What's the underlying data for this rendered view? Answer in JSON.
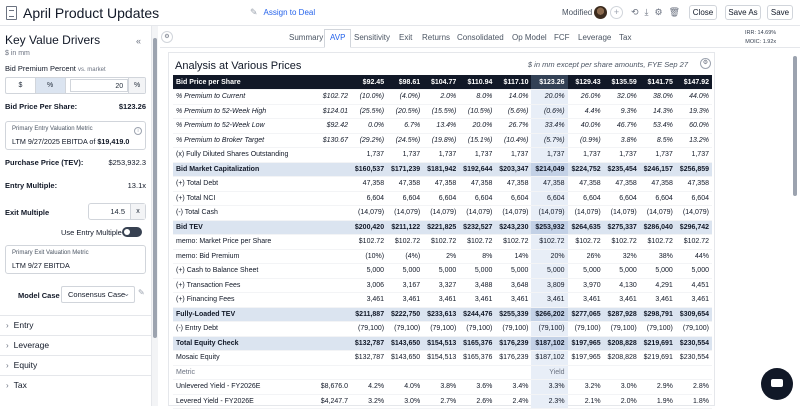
{
  "header": {
    "title": "April Product Updates",
    "assign_label": "Assign to Deal",
    "modified_label": "Modified",
    "close_label": "Close",
    "save_as_label": "Save As",
    "save_label": "Save"
  },
  "left": {
    "title": "Key Value Drivers",
    "unit": "$ in mm",
    "bid_premium_label": "Bid Premium Percent",
    "bid_premium_note": "vs. market",
    "seg_dollar": "$",
    "seg_pct": "%",
    "premium_value": "20",
    "premium_unit": "%",
    "bid_price_label": "Bid Price Per Share:",
    "bid_price_value": "$123.26",
    "entry_metric_title": "Primary Entry Valuation Metric",
    "entry_metric_value": "LTM 9/27/2025 EBITDA",
    "entry_metric_of": "of",
    "entry_metric_amount": "$19,419.0",
    "purchase_price_label": "Purchase Price (TEV):",
    "purchase_price_value": "$253,932.3",
    "entry_multiple_label": "Entry Multiple:",
    "entry_multiple_value": "13.1x",
    "exit_multiple_label": "Exit Multiple",
    "exit_multiple_value": "14.5",
    "exit_multiple_unit": "x",
    "use_entry_label": "Use Entry Multiple",
    "exit_metric_title": "Primary Exit Valuation Metric",
    "exit_metric_value": "LTM 9/27 EBITDA",
    "model_case_label": "Model Case",
    "model_case_value": "Consensus Case",
    "sections": [
      "Entry",
      "Leverage",
      "Equity",
      "Tax"
    ]
  },
  "tabs": [
    "Summary",
    "AVP",
    "Sensitivity",
    "Exit",
    "Returns",
    "Consolidated",
    "Op Model",
    "FCF",
    "Leverage",
    "Tax"
  ],
  "active_tab": "AVP",
  "irr": {
    "irr_label": "IRR:",
    "irr_value": "14.69%",
    "moic_label": "MOIC:",
    "moic_value": "1.92x"
  },
  "analysis": {
    "title": "Analysis at Various Prices",
    "note": "$ in mm except per share amounts, FYE Sep 27"
  },
  "table": {
    "rows": [
      {
        "type": "hd",
        "label": "Bid Price per Share",
        "base": "",
        "cells": [
          "$92.45",
          "$98.61",
          "$104.77",
          "$110.94",
          "$117.10",
          "$123.26",
          "$129.43",
          "$135.59",
          "$141.75",
          "$147.92"
        ]
      },
      {
        "type": "it",
        "label": "% Premium to Current",
        "base": "$102.72",
        "cells": [
          "(10.0%)",
          "(4.0%)",
          "2.0%",
          "8.0%",
          "14.0%",
          "20.0%",
          "26.0%",
          "32.0%",
          "38.0%",
          "44.0%"
        ]
      },
      {
        "type": "it",
        "label": "% Premium to 52-Week High",
        "base": "$124.01",
        "cells": [
          "(25.5%)",
          "(20.5%)",
          "(15.5%)",
          "(10.5%)",
          "(5.6%)",
          "(0.6%)",
          "4.4%",
          "9.3%",
          "14.3%",
          "19.3%"
        ]
      },
      {
        "type": "it",
        "label": "% Premium to 52-Week Low",
        "base": "$92.42",
        "cells": [
          "0.0%",
          "6.7%",
          "13.4%",
          "20.0%",
          "26.7%",
          "33.4%",
          "40.0%",
          "46.7%",
          "53.4%",
          "60.0%"
        ]
      },
      {
        "type": "it",
        "label": "% Premium to Broker Target",
        "base": "$130.67",
        "cells": [
          "(29.2%)",
          "(24.5%)",
          "(19.8%)",
          "(15.1%)",
          "(10.4%)",
          "(5.7%)",
          "(0.9%)",
          "3.8%",
          "8.5%",
          "13.2%"
        ]
      },
      {
        "type": "n",
        "label": "(x) Fully Diluted Shares Outstanding",
        "base": "",
        "cells": [
          "1,737",
          "1,737",
          "1,737",
          "1,737",
          "1,737",
          "1,737",
          "1,737",
          "1,737",
          "1,737",
          "1,737"
        ]
      },
      {
        "type": "sec",
        "label": "Bid Market Capitalization",
        "base": "",
        "cells": [
          "$160,537",
          "$171,239",
          "$181,942",
          "$192,644",
          "$203,347",
          "$214,049",
          "$224,752",
          "$235,454",
          "$246,157",
          "$256,859"
        ]
      },
      {
        "type": "n",
        "label": "(+) Total Debt",
        "base": "",
        "cells": [
          "47,358",
          "47,358",
          "47,358",
          "47,358",
          "47,358",
          "47,358",
          "47,358",
          "47,358",
          "47,358",
          "47,358"
        ]
      },
      {
        "type": "n",
        "label": "(+) Total NCI",
        "base": "",
        "cells": [
          "6,604",
          "6,604",
          "6,604",
          "6,604",
          "6,604",
          "6,604",
          "6,604",
          "6,604",
          "6,604",
          "6,604"
        ]
      },
      {
        "type": "n",
        "label": "(-) Total Cash",
        "base": "",
        "cells": [
          "(14,079)",
          "(14,079)",
          "(14,079)",
          "(14,079)",
          "(14,079)",
          "(14,079)",
          "(14,079)",
          "(14,079)",
          "(14,079)",
          "(14,079)"
        ]
      },
      {
        "type": "sec",
        "label": "Bid TEV",
        "base": "",
        "cells": [
          "$200,420",
          "$211,122",
          "$221,825",
          "$232,527",
          "$243,230",
          "$253,932",
          "$264,635",
          "$275,337",
          "$286,040",
          "$296,742"
        ]
      },
      {
        "type": "n",
        "label": "memo: Market Price per Share",
        "base": "",
        "cells": [
          "$102.72",
          "$102.72",
          "$102.72",
          "$102.72",
          "$102.72",
          "$102.72",
          "$102.72",
          "$102.72",
          "$102.72",
          "$102.72"
        ]
      },
      {
        "type": "n",
        "label": "memo: Bid Premium",
        "base": "",
        "cells": [
          "(10%)",
          "(4%)",
          "2%",
          "8%",
          "14%",
          "20%",
          "26%",
          "32%",
          "38%",
          "44%"
        ]
      },
      {
        "type": "n",
        "label": "(+) Cash to Balance Sheet",
        "base": "",
        "cells": [
          "5,000",
          "5,000",
          "5,000",
          "5,000",
          "5,000",
          "5,000",
          "5,000",
          "5,000",
          "5,000",
          "5,000"
        ]
      },
      {
        "type": "n",
        "label": "(+) Transaction Fees",
        "base": "",
        "cells": [
          "3,006",
          "3,167",
          "3,327",
          "3,488",
          "3,648",
          "3,809",
          "3,970",
          "4,130",
          "4,291",
          "4,451"
        ]
      },
      {
        "type": "n",
        "label": "(+) Financing Fees",
        "base": "",
        "cells": [
          "3,461",
          "3,461",
          "3,461",
          "3,461",
          "3,461",
          "3,461",
          "3,461",
          "3,461",
          "3,461",
          "3,461"
        ]
      },
      {
        "type": "sec",
        "label": "Fully-Loaded TEV",
        "base": "",
        "cells": [
          "$211,887",
          "$222,750",
          "$233,613",
          "$244,476",
          "$255,339",
          "$266,202",
          "$277,065",
          "$287,928",
          "$298,791",
          "$309,654"
        ]
      },
      {
        "type": "n",
        "label": "(-) Entry Debt",
        "base": "",
        "cells": [
          "(79,100)",
          "(79,100)",
          "(79,100)",
          "(79,100)",
          "(79,100)",
          "(79,100)",
          "(79,100)",
          "(79,100)",
          "(79,100)",
          "(79,100)"
        ]
      },
      {
        "type": "sec",
        "label": "Total Equity Check",
        "base": "",
        "cells": [
          "$132,787",
          "$143,650",
          "$154,513",
          "$165,376",
          "$176,239",
          "$187,102",
          "$197,965",
          "$208,828",
          "$219,691",
          "$230,554"
        ]
      },
      {
        "type": "n",
        "label": "Mosaic Equity",
        "base": "",
        "cells": [
          "$132,787",
          "$143,650",
          "$154,513",
          "$165,376",
          "$176,239",
          "$187,102",
          "$197,965",
          "$208,828",
          "$219,691",
          "$230,554"
        ]
      },
      {
        "type": "grey",
        "label": "Metric",
        "base": "",
        "cells": [
          "",
          "",
          "",
          "",
          "",
          "Yield",
          "",
          "",
          "",
          ""
        ]
      },
      {
        "type": "n",
        "label": "Unlevered Yield - FY2026E",
        "base": "$8,676.0",
        "cells": [
          "4.2%",
          "4.0%",
          "3.8%",
          "3.6%",
          "3.4%",
          "3.3%",
          "3.2%",
          "3.0%",
          "2.9%",
          "2.8%"
        ]
      },
      {
        "type": "n",
        "label": "Levered Yield - FY2026E",
        "base": "$4,247.7",
        "cells": [
          "3.2%",
          "3.0%",
          "2.7%",
          "2.6%",
          "2.4%",
          "2.3%",
          "2.1%",
          "2.0%",
          "1.9%",
          "1.8%"
        ]
      }
    ]
  }
}
